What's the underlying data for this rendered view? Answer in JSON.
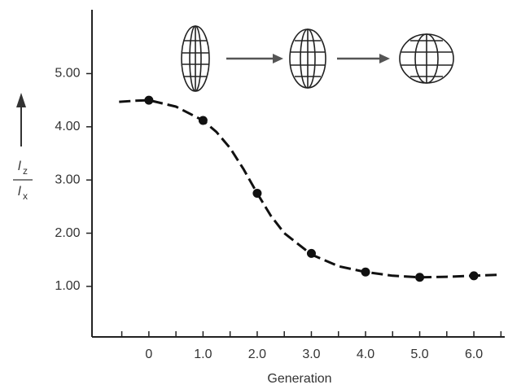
{
  "chart_data": {
    "type": "scatter",
    "xlabel": "Generation",
    "ylabel_numerator": {
      "base": "l",
      "sub": "z"
    },
    "ylabel_denominator": {
      "base": "l",
      "sub": "x"
    },
    "xlim": [
      -1.05,
      6.57
    ],
    "ylim": [
      0.05,
      6.2
    ],
    "xticks": [
      0,
      {
        "value": 1,
        "label": "1.0"
      },
      {
        "value": 2,
        "label": "2.0"
      },
      {
        "value": 3,
        "label": "3.0"
      },
      {
        "value": 4,
        "label": "4.0"
      },
      {
        "value": 5,
        "label": "5.0"
      },
      {
        "value": 6,
        "label": "6.0"
      }
    ],
    "xminorticks": [
      -0.5,
      0.5,
      1.5,
      2.5,
      3.5,
      4.5,
      5.5,
      6.5
    ],
    "yticks": [
      {
        "value": 1,
        "label": "1.00"
      },
      {
        "value": 2,
        "label": "2.00"
      },
      {
        "value": 3,
        "label": "3.00"
      },
      {
        "value": 4,
        "label": "4.00"
      },
      {
        "value": 5,
        "label": "5.00"
      }
    ],
    "color": "#111",
    "points": {
      "x": [
        0,
        1,
        2,
        3,
        4,
        5,
        6
      ],
      "values": [
        4.5,
        4.12,
        2.75,
        1.62,
        1.27,
        1.17,
        1.2
      ]
    },
    "fit_curve": {
      "x": [
        -0.55,
        -0.25,
        0,
        0.5,
        1,
        1.25,
        1.5,
        1.75,
        2,
        2.25,
        2.5,
        3,
        3.5,
        4,
        4.5,
        5,
        5.5,
        6,
        6.5
      ],
      "values": [
        4.47,
        4.49,
        4.5,
        4.38,
        4.12,
        3.9,
        3.6,
        3.2,
        2.75,
        2.33,
        2.0,
        1.6,
        1.38,
        1.27,
        1.2,
        1.17,
        1.18,
        1.2,
        1.22
      ]
    }
  }
}
